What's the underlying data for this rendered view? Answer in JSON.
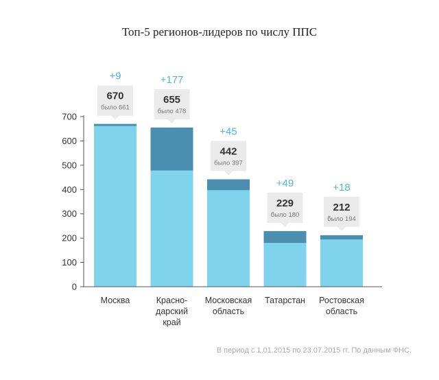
{
  "chart_data": {
    "type": "bar",
    "title": "Топ-5 регионов-лидеров по числу ППС",
    "xlabel": "",
    "ylabel": "",
    "ylim": [
      0,
      700
    ],
    "yticks": [
      0,
      100,
      200,
      300,
      400,
      500,
      600,
      700
    ],
    "stacked": true,
    "grid": false,
    "categories": [
      "Москва",
      "Красно-дарский край",
      "Московская область",
      "Татарстан",
      "Ростовская область"
    ],
    "category_lines": [
      [
        "Москва"
      ],
      [
        "Красно-",
        "дарский",
        "край"
      ],
      [
        "Московская",
        "область"
      ],
      [
        "Татарстан"
      ],
      [
        "Ростовская",
        "область"
      ]
    ],
    "values": [
      670,
      655,
      442,
      229,
      212
    ],
    "previous": [
      661,
      478,
      397,
      180,
      194
    ],
    "deltas": [
      "+9",
      "+177",
      "+45",
      "+49",
      "+18"
    ],
    "previous_prefix": "было",
    "colors": {
      "previous": "#7fd3ec",
      "increase": "#4a8fb0",
      "delta_text": "#4fb8d0",
      "callout": "#ebebeb"
    },
    "footnote": "В период с 1.01.2015 по 23.07.2015 гг. По данным ФНС."
  }
}
